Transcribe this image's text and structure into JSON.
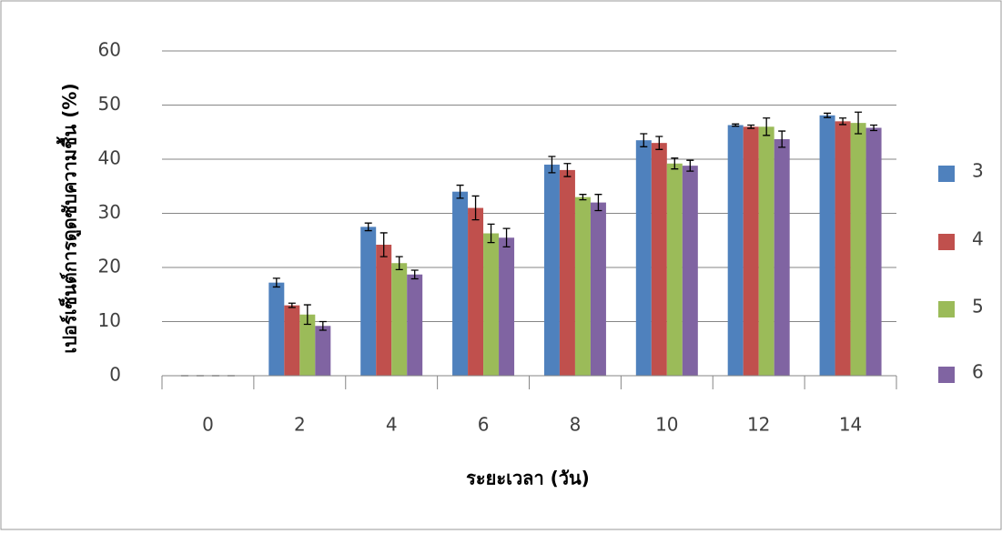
{
  "chart_data": {
    "type": "bar",
    "x_label": "ระยะเวลา (วัน)",
    "y_label": "เปอร์เซ็นต์การดูดซับความชื้น (%)",
    "categories": [
      "0",
      "2",
      "4",
      "6",
      "8",
      "10",
      "12",
      "14"
    ],
    "series": [
      {
        "name": "3",
        "color": "#4f81bd",
        "values": [
          0,
          17.2,
          27.5,
          34,
          39,
          43.5,
          46.3,
          48.1
        ],
        "errors": [
          0,
          0.8,
          0.7,
          1.2,
          1.5,
          1.2,
          0.2,
          0.4
        ]
      },
      {
        "name": "4",
        "color": "#c0504d",
        "values": [
          0,
          13,
          24.2,
          31,
          38,
          43,
          46,
          47
        ],
        "errors": [
          0,
          0.4,
          2.2,
          2.2,
          1.2,
          1.2,
          0.3,
          0.6
        ]
      },
      {
        "name": "5",
        "color": "#9bbb59",
        "values": [
          0,
          11.3,
          20.8,
          26.3,
          33,
          39.2,
          46,
          46.7
        ],
        "errors": [
          0,
          1.8,
          1.2,
          1.7,
          0.5,
          1.0,
          1.6,
          2.0
        ]
      },
      {
        "name": "6",
        "color": "#8064a2",
        "values": [
          0,
          9.2,
          18.7,
          25.5,
          32,
          38.8,
          43.7,
          45.8
        ],
        "errors": [
          0,
          0.8,
          0.8,
          1.7,
          1.5,
          1.0,
          1.5,
          0.5
        ]
      }
    ],
    "ylim": [
      0,
      60
    ],
    "yticks": [
      0,
      10,
      20,
      30,
      40,
      50,
      60
    ],
    "grid": true,
    "legend": "right"
  }
}
